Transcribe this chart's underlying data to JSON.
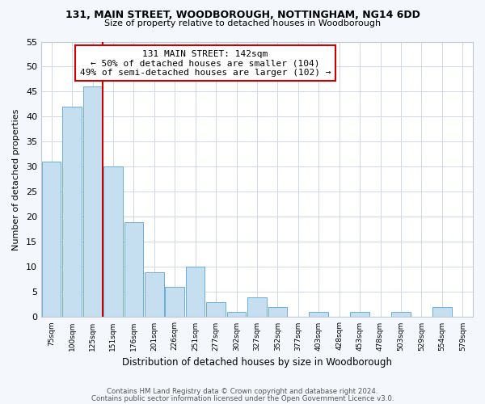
{
  "title1": "131, MAIN STREET, WOODBOROUGH, NOTTINGHAM, NG14 6DD",
  "title2": "Size of property relative to detached houses in Woodborough",
  "xlabel": "Distribution of detached houses by size in Woodborough",
  "ylabel": "Number of detached properties",
  "bin_labels": [
    "75sqm",
    "100sqm",
    "125sqm",
    "151sqm",
    "176sqm",
    "201sqm",
    "226sqm",
    "251sqm",
    "277sqm",
    "302sqm",
    "327sqm",
    "352sqm",
    "377sqm",
    "403sqm",
    "428sqm",
    "453sqm",
    "478sqm",
    "503sqm",
    "529sqm",
    "554sqm",
    "579sqm"
  ],
  "bar_heights": [
    31,
    42,
    46,
    30,
    19,
    9,
    6,
    10,
    3,
    1,
    4,
    2,
    0,
    1,
    0,
    1,
    0,
    1,
    0,
    2,
    0
  ],
  "bar_color": "#c5dff0",
  "bar_edge_color": "#6aaed6",
  "vline_color": "#cc0000",
  "annotation_text": "131 MAIN STREET: 142sqm\n← 50% of detached houses are smaller (104)\n49% of semi-detached houses are larger (102) →",
  "annotation_box_color": "#ffffff",
  "annotation_box_edge": "#cc0000",
  "ylim": [
    0,
    55
  ],
  "yticks": [
    0,
    5,
    10,
    15,
    20,
    25,
    30,
    35,
    40,
    45,
    50,
    55
  ],
  "footer1": "Contains HM Land Registry data © Crown copyright and database right 2024.",
  "footer2": "Contains public sector information licensed under the Open Government Licence v3.0.",
  "bg_color": "#f4f7fb",
  "plot_bg_color": "#ffffff",
  "grid_color": "#d0d8e8"
}
